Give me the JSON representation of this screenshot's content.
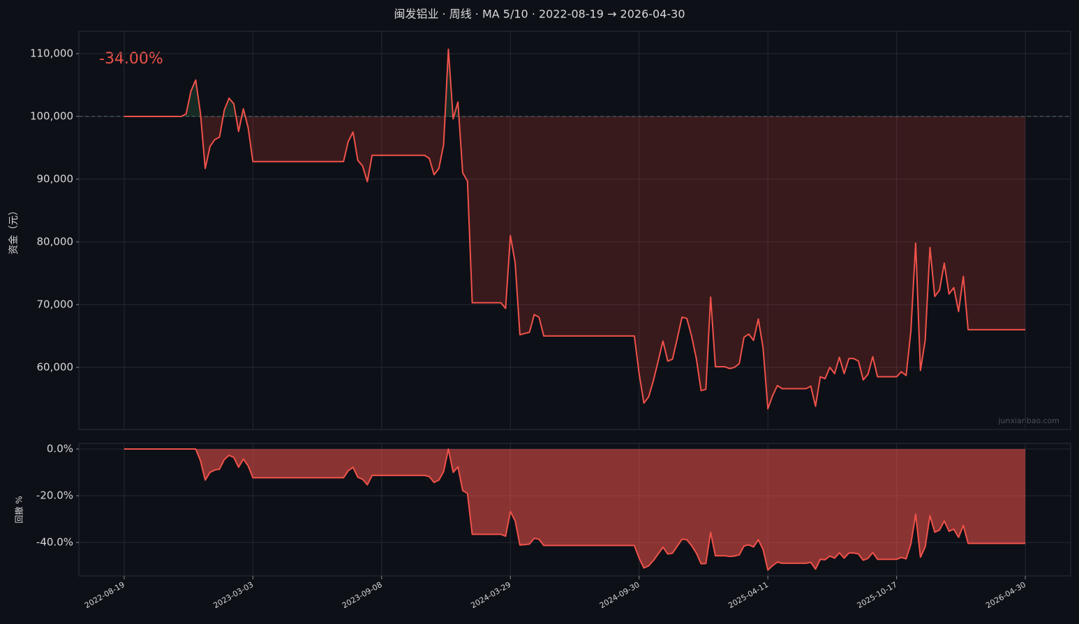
{
  "chart_data": [
    {
      "type": "line",
      "title": "闽发铝业 · 周线 · MA 5/10 · 2022-08-19 → 2026-04-30",
      "ylabel": "资金（元）",
      "annotation": "-34.00%",
      "watermark": "junxianbao.com",
      "baseline": 100000,
      "x": [
        0,
        12,
        13,
        14,
        15,
        16,
        17,
        18,
        19,
        20,
        21,
        22,
        23,
        24,
        25,
        26,
        27,
        46,
        47,
        48,
        49,
        50,
        51,
        52,
        63,
        64,
        65,
        66,
        67,
        68,
        69,
        70,
        71,
        72,
        73,
        79,
        80,
        81,
        82,
        83,
        84,
        85,
        86,
        87,
        88,
        107,
        108,
        109,
        110,
        111,
        112,
        113,
        114,
        115,
        116,
        117,
        118,
        119,
        120,
        121,
        122,
        123,
        124,
        126,
        127,
        128,
        129,
        130,
        131,
        132,
        133,
        134,
        135,
        136,
        137,
        138,
        143,
        144,
        145,
        146,
        147,
        148,
        149,
        150,
        151,
        152,
        153,
        154,
        155,
        156,
        157,
        158,
        162,
        163,
        164,
        165,
        166,
        167,
        168,
        169,
        170,
        171,
        172,
        173,
        174,
        175,
        176,
        177,
        189
      ],
      "series": [
        {
          "color": "#f0524a",
          "values": [
            100000,
            100000,
            100400,
            104000,
            105800,
            100500,
            91700,
            95200,
            96300,
            96700,
            101000,
            102900,
            102000,
            97600,
            101200,
            98200,
            92800,
            92800,
            96000,
            97500,
            93000,
            92100,
            89600,
            93800,
            93800,
            93300,
            90700,
            91700,
            95500,
            110700,
            99600,
            102300,
            91000,
            89700,
            70300,
            70300,
            69400,
            81000,
            76700,
            65200,
            65400,
            65600,
            68400,
            68000,
            65000,
            65000,
            59000,
            54300,
            55300,
            57900,
            61000,
            64200,
            61000,
            61300,
            64600,
            68000,
            67800,
            65000,
            61400,
            56300,
            56500,
            71200,
            60100,
            60100,
            59800,
            60000,
            60600,
            64800,
            65300,
            64300,
            67700,
            63100,
            53400,
            55500,
            57100,
            56600,
            56600,
            57000,
            53800,
            58500,
            58200,
            60000,
            59000,
            61600,
            59000,
            61400,
            61400,
            61000,
            58000,
            58900,
            61700,
            58500,
            58500,
            59300,
            58700,
            65800,
            79800,
            59500,
            64300,
            79100,
            71300,
            72300,
            76600,
            71700,
            72700,
            68900,
            74500,
            66000,
            66000
          ]
        }
      ],
      "xlim": [
        -9.5,
        198.5
      ],
      "ylim": [
        50100,
        113550
      ],
      "yticks": [
        {
          "value": 60000,
          "label": "60,000"
        },
        {
          "value": 70000,
          "label": "70,000"
        },
        {
          "value": 80000,
          "label": "80,000"
        },
        {
          "value": 90000,
          "label": "90,000"
        },
        {
          "value": 100000,
          "label": "100,000"
        },
        {
          "value": 110000,
          "label": "110,000"
        }
      ],
      "grid": true,
      "fill_above_color": "#2f7a4a",
      "fill_below_color": "#c0392b"
    },
    {
      "type": "area",
      "ylabel": "回撤 %",
      "x": [
        0,
        12,
        13,
        14,
        15,
        16,
        17,
        18,
        19,
        20,
        21,
        22,
        23,
        24,
        25,
        26,
        27,
        46,
        47,
        48,
        49,
        50,
        51,
        52,
        63,
        64,
        65,
        66,
        67,
        68,
        69,
        70,
        71,
        72,
        73,
        79,
        80,
        81,
        82,
        83,
        84,
        85,
        86,
        87,
        88,
        107,
        108,
        109,
        110,
        111,
        112,
        113,
        114,
        115,
        116,
        117,
        118,
        119,
        120,
        121,
        122,
        123,
        124,
        126,
        127,
        128,
        129,
        130,
        131,
        132,
        133,
        134,
        135,
        136,
        137,
        138,
        143,
        144,
        145,
        146,
        147,
        148,
        149,
        150,
        151,
        152,
        153,
        154,
        155,
        156,
        157,
        158,
        162,
        163,
        164,
        165,
        166,
        167,
        168,
        169,
        170,
        171,
        172,
        173,
        174,
        175,
        176,
        177,
        189
      ],
      "series": [
        {
          "color": "#f0524a",
          "values": [
            0,
            0,
            0,
            0,
            0,
            -5.0,
            -13.3,
            -10.0,
            -9.0,
            -8.6,
            -4.5,
            -2.7,
            -3.6,
            -7.8,
            -4.3,
            -7.2,
            -12.3,
            -12.3,
            -9.3,
            -7.8,
            -12.1,
            -12.9,
            -15.3,
            -11.3,
            -11.3,
            -11.8,
            -14.3,
            -13.3,
            -9.7,
            0,
            -10.0,
            -7.6,
            -17.8,
            -19.0,
            -36.5,
            -36.5,
            -37.3,
            -26.8,
            -30.7,
            -41.1,
            -40.9,
            -40.7,
            -38.2,
            -38.6,
            -41.3,
            -41.3,
            -46.7,
            -50.9,
            -50.0,
            -47.7,
            -44.9,
            -42.0,
            -44.9,
            -44.6,
            -41.6,
            -38.6,
            -38.8,
            -41.3,
            -44.5,
            -49.1,
            -49.0,
            -35.7,
            -45.7,
            -45.7,
            -46.0,
            -45.8,
            -45.3,
            -41.5,
            -41.0,
            -41.9,
            -38.8,
            -43.0,
            -51.8,
            -49.9,
            -48.4,
            -48.9,
            -48.9,
            -48.5,
            -51.4,
            -47.2,
            -47.4,
            -45.8,
            -46.7,
            -44.4,
            -46.7,
            -44.5,
            -44.5,
            -44.9,
            -47.6,
            -46.8,
            -44.3,
            -47.2,
            -47.2,
            -46.4,
            -47.0,
            -40.6,
            -27.9,
            -46.3,
            -41.9,
            -28.5,
            -35.6,
            -34.7,
            -30.8,
            -35.2,
            -34.3,
            -37.8,
            -32.7,
            -40.4,
            -40.4
          ]
        }
      ],
      "xlim": [
        -9.5,
        198.5
      ],
      "ylim": [
        -54.3,
        2.4
      ],
      "yticks": [
        {
          "value": 0,
          "label": "0.0%"
        },
        {
          "value": -20,
          "label": "-20.0%"
        },
        {
          "value": -40,
          "label": "-40.0%"
        }
      ],
      "xticks": [
        {
          "value": 0,
          "label": "2022-08-19"
        },
        {
          "value": 27,
          "label": "2023-03-03"
        },
        {
          "value": 54,
          "label": "2023-09-08"
        },
        {
          "value": 81,
          "label": "2024-03-29"
        },
        {
          "value": 108,
          "label": "2024-09-30"
        },
        {
          "value": 135,
          "label": "2025-04-11"
        },
        {
          "value": 162,
          "label": "2025-10-17"
        },
        {
          "value": 189,
          "label": "2026-04-30"
        }
      ],
      "grid": true
    }
  ]
}
